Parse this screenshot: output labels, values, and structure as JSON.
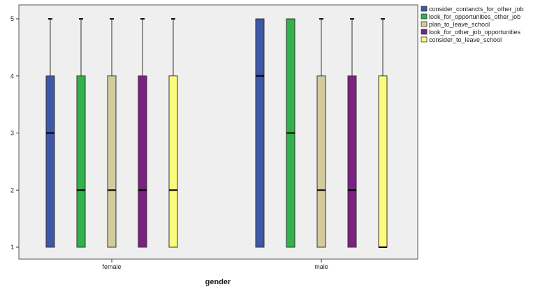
{
  "chart_data": {
    "type": "boxplot",
    "xlabel": "gender",
    "ylabel": "",
    "ylim": [
      1,
      5
    ],
    "yticks": [
      "1",
      "2",
      "3",
      "4",
      "5"
    ],
    "grid": false,
    "legend_position": "top-right",
    "categories": [
      "female",
      "male"
    ],
    "series": [
      {
        "name": "consider_contancts_for_other_job",
        "color": "#3e57a7",
        "boxes": [
          {
            "min": 1,
            "q1": 1,
            "median": 3,
            "q3": 4,
            "max": 5
          },
          {
            "min": 1,
            "q1": 1,
            "median": 4,
            "q3": 5,
            "max": 5
          }
        ]
      },
      {
        "name": "look_for_opportunities_other_job",
        "color": "#33b24b",
        "boxes": [
          {
            "min": 1,
            "q1": 1,
            "median": 2,
            "q3": 4,
            "max": 5
          },
          {
            "min": 1,
            "q1": 1,
            "median": 3,
            "q3": 5,
            "max": 5
          }
        ]
      },
      {
        "name": "plan_to_leave_school",
        "color": "#d2cb9d",
        "boxes": [
          {
            "min": 1,
            "q1": 1,
            "median": 2,
            "q3": 4,
            "max": 5
          },
          {
            "min": 1,
            "q1": 1,
            "median": 2,
            "q3": 4,
            "max": 5
          }
        ]
      },
      {
        "name": "look_for_other_job_opportunities",
        "color": "#7b2181",
        "boxes": [
          {
            "min": 1,
            "q1": 1,
            "median": 2,
            "q3": 4,
            "max": 5
          },
          {
            "min": 1,
            "q1": 1,
            "median": 2,
            "q3": 4,
            "max": 5
          }
        ]
      },
      {
        "name": "consider_to_leave_school",
        "color": "#fbfb7c",
        "boxes": [
          {
            "min": 1,
            "q1": 1,
            "median": 2,
            "q3": 4,
            "max": 5
          },
          {
            "min": 1,
            "q1": 1,
            "median": 1,
            "q3": 4,
            "max": 5
          }
        ]
      }
    ],
    "plot_background": "#efefef"
  }
}
